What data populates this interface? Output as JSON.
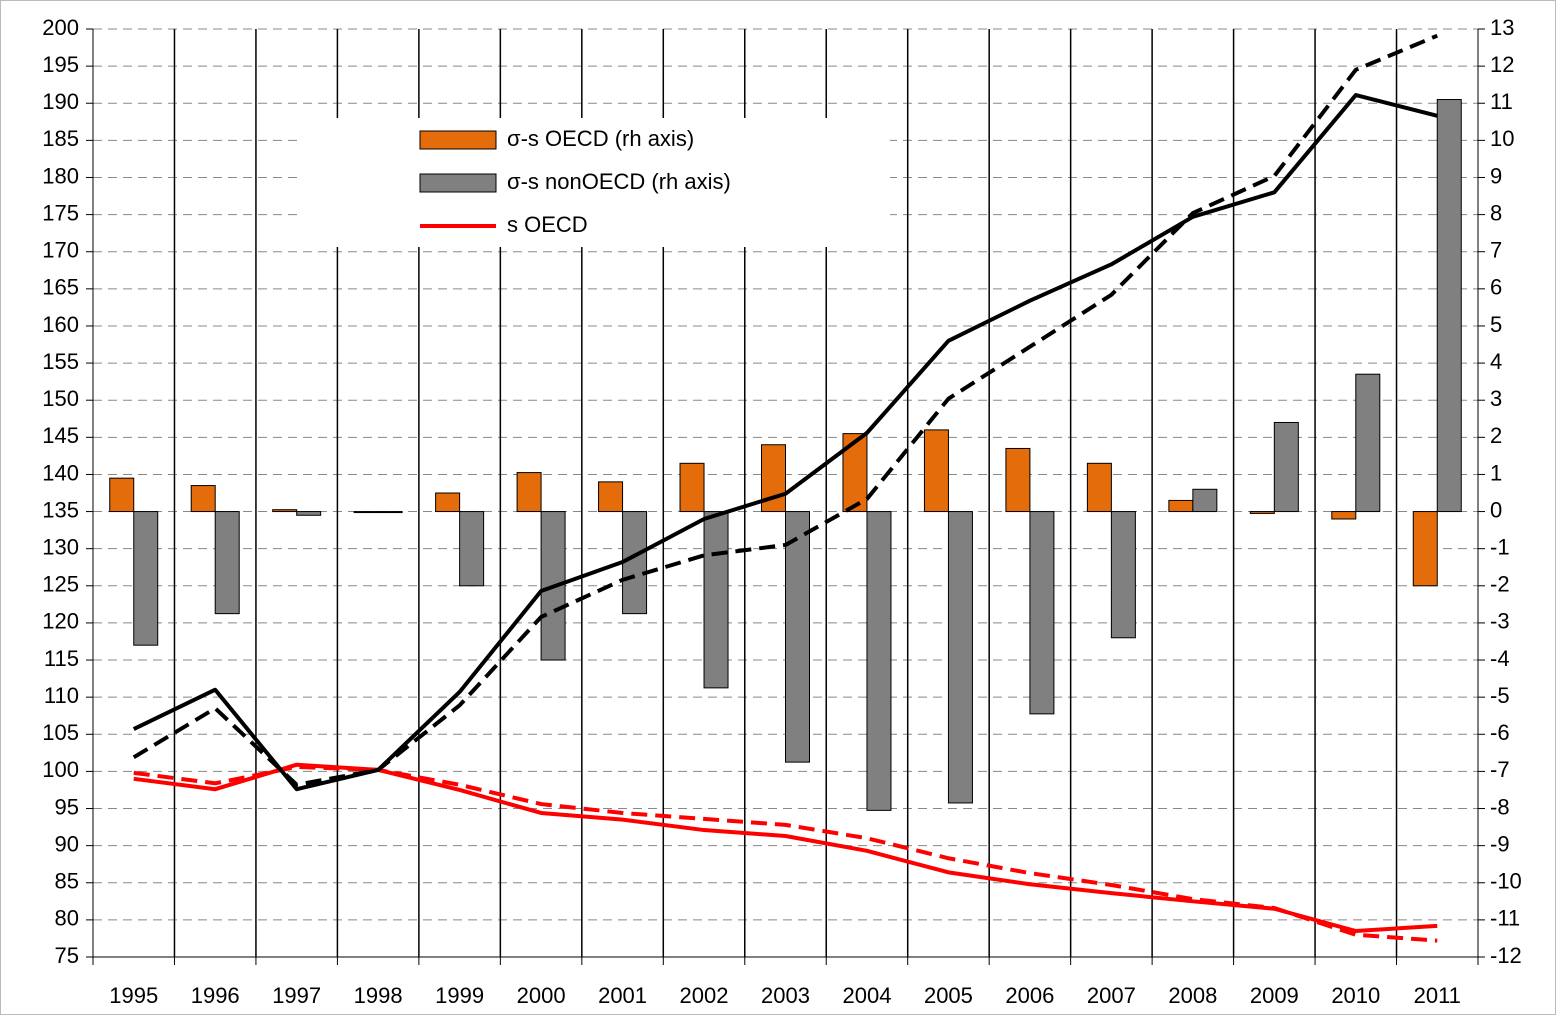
{
  "chart_data": {
    "type": "bar",
    "categories": [
      "1995",
      "1996",
      "1997",
      "1998",
      "1999",
      "2000",
      "2001",
      "2002",
      "2003",
      "2004",
      "2005",
      "2006",
      "2007",
      "2008",
      "2009",
      "2010",
      "2011"
    ],
    "ylim": [
      75,
      200
    ],
    "yticks": [
      75,
      80,
      85,
      90,
      95,
      100,
      105,
      110,
      115,
      120,
      125,
      130,
      135,
      140,
      145,
      150,
      155,
      160,
      165,
      170,
      175,
      180,
      185,
      190,
      195,
      200
    ],
    "y2lim": [
      -12,
      13
    ],
    "y2ticks": [
      -12,
      -11,
      -10,
      -9,
      -8,
      -7,
      -6,
      -5,
      -4,
      -3,
      -2,
      -1,
      0,
      1,
      2,
      3,
      4,
      5,
      6,
      7,
      8,
      9,
      10,
      11,
      12,
      13
    ],
    "grid": true,
    "series": [
      {
        "name": "σ-s OECD (rh axis)",
        "type": "bar",
        "axis": "y2",
        "color": "#e46c0a",
        "values": [
          0.9,
          0.7,
          0.05,
          0,
          0.5,
          1.05,
          0.8,
          1.3,
          1.8,
          2.1,
          2.2,
          1.7,
          1.3,
          0.3,
          -0.05,
          -0.2,
          -2.0
        ]
      },
      {
        "name": "σ-s nonOECD (rh axis)",
        "type": "bar",
        "axis": "y2",
        "color": "#808080",
        "values": [
          -3.6,
          -2.75,
          -0.1,
          0,
          -2.0,
          -4.0,
          -2.75,
          -4.75,
          -6.75,
          -8.05,
          -7.85,
          -5.45,
          -3.4,
          0.6,
          2.4,
          3.7,
          11.1
        ]
      },
      {
        "name": "s OECD",
        "type": "line",
        "color": "#ff0000",
        "values": [
          99.0,
          97.6,
          100.9,
          100.2,
          97.5,
          94.4,
          93.5,
          92.1,
          91.3,
          89.3,
          86.4,
          84.8,
          83.6,
          82.5,
          81.5,
          78.5,
          79.2
        ]
      },
      {
        "type": "line",
        "color": "#ff0000",
        "dashed": true,
        "values": [
          99.8,
          98.4,
          100.6,
          100.2,
          98.2,
          95.6,
          94.4,
          93.6,
          92.8,
          91.0,
          88.3,
          86.3,
          84.7,
          82.8,
          81.6,
          78.0,
          77.2
        ]
      },
      {
        "type": "line",
        "color": "#000000",
        "values": [
          105.7,
          111.0,
          97.6,
          100.2,
          110.7,
          124.3,
          128.2,
          134.0,
          137.4,
          145.6,
          158.0,
          163.4,
          168.3,
          174.7,
          178.0,
          191.1,
          188.3
        ]
      },
      {
        "type": "line",
        "color": "#000000",
        "dashed": true,
        "values": [
          101.9,
          108.5,
          98.2,
          100.2,
          108.9,
          120.8,
          125.8,
          129.1,
          130.5,
          136.7,
          150.2,
          157.2,
          164.2,
          175.2,
          180.2,
          194.5,
          199.1
        ]
      }
    ]
  }
}
